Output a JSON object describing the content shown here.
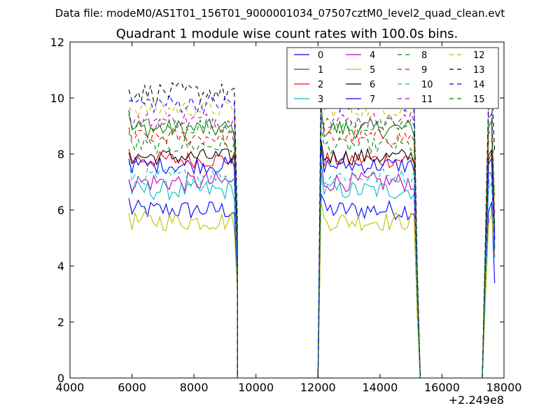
{
  "chart_data": {
    "type": "line",
    "suptitle": "Data file: modeM0/AS1T01_156T01_9000001034_07507cztM0_level2_quad_clean.evt",
    "title": "Quadrant 1 module wise count rates with 100.0s bins.",
    "xlabel": "",
    "ylabel": "",
    "x_offset_label": "+2.249e8",
    "xlim": [
      4000,
      18000
    ],
    "ylim": [
      0,
      12
    ],
    "x_ticks": [
      4000,
      6000,
      8000,
      10000,
      12000,
      14000,
      16000,
      18000
    ],
    "y_ticks": [
      0,
      2,
      4,
      6,
      8,
      10,
      12
    ],
    "grid": false,
    "legend_position": "top-right",
    "segments": [
      {
        "start": 5900,
        "end": 9300
      },
      {
        "start": 12100,
        "end": 15100
      },
      {
        "start": 17500,
        "end": 17700
      }
    ],
    "zero_runs": [
      {
        "start": 9400,
        "end": 12000
      },
      {
        "start": 15300,
        "end": 17300
      }
    ],
    "series": [
      {
        "name": "0",
        "color": "#0000ff",
        "dash": "solid",
        "mean": 6.0,
        "amp": 0.35
      },
      {
        "name": "1",
        "color": "#008000",
        "dash": "solid",
        "mean": 8.9,
        "amp": 0.35
      },
      {
        "name": "2",
        "color": "#ff0000",
        "dash": "solid",
        "mean": 7.8,
        "amp": 0.3
      },
      {
        "name": "3",
        "color": "#00bfbf",
        "dash": "solid",
        "mean": 6.7,
        "amp": 0.35
      },
      {
        "name": "4",
        "color": "#bf00bf",
        "dash": "solid",
        "mean": 7.0,
        "amp": 0.35
      },
      {
        "name": "5",
        "color": "#bfbf00",
        "dash": "solid",
        "mean": 5.6,
        "amp": 0.35
      },
      {
        "name": "6",
        "color": "#000000",
        "dash": "solid",
        "mean": 7.9,
        "amp": 0.3
      },
      {
        "name": "7",
        "color": "#0000ff",
        "dash": "solid",
        "mean": 7.6,
        "amp": 0.3
      },
      {
        "name": "8",
        "color": "#008000",
        "dash": "dashed",
        "mean": 8.3,
        "amp": 0.3
      },
      {
        "name": "9",
        "color": "#ff0000",
        "dash": "dashed",
        "mean": 8.6,
        "amp": 0.3
      },
      {
        "name": "10",
        "color": "#00bfbf",
        "dash": "dashed",
        "mean": 7.2,
        "amp": 0.3
      },
      {
        "name": "11",
        "color": "#bf00bf",
        "dash": "dashed",
        "mean": 9.2,
        "amp": 0.3
      },
      {
        "name": "12",
        "color": "#bfbf00",
        "dash": "dashed",
        "mean": 9.6,
        "amp": 0.3
      },
      {
        "name": "13",
        "color": "#000000",
        "dash": "dashed",
        "mean": 10.2,
        "amp": 0.35
      },
      {
        "name": "14",
        "color": "#0000ff",
        "dash": "dashed",
        "mean": 9.8,
        "amp": 0.35
      },
      {
        "name": "15",
        "color": "#008000",
        "dash": "dashed",
        "mean": 9.0,
        "amp": 0.3
      }
    ]
  }
}
